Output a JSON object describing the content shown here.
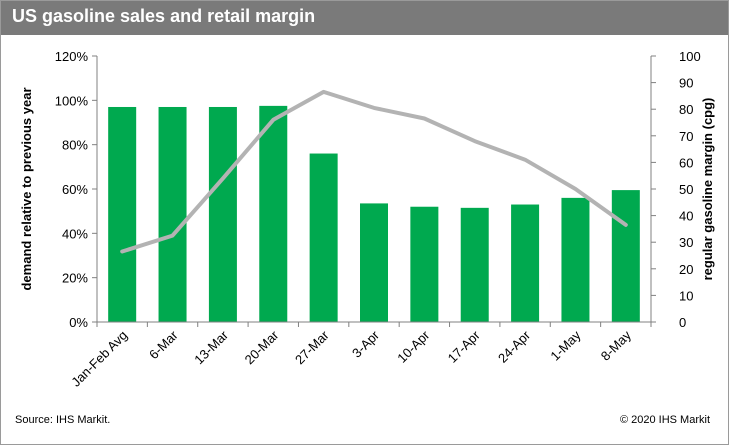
{
  "title": "US gasoline sales and retail margin",
  "source": "Source: IHS Markit.",
  "copyright": "© 2020 IHS Markit",
  "colors": {
    "bars": "#00a94f",
    "line": "#b3b3b3",
    "title_bg": "#7a7a7a"
  },
  "chart_data": {
    "type": "bar",
    "categories": [
      "Jan-Feb Avg",
      "6-Mar",
      "13-Mar",
      "20-Mar",
      "27-Mar",
      "3-Apr",
      "10-Apr",
      "17-Apr",
      "24-Apr",
      "1-May",
      "8-May"
    ],
    "series": [
      {
        "type": "bar",
        "axis": "left",
        "values": [
          97,
          97,
          97,
          97.5,
          76,
          53.5,
          52,
          51.5,
          53,
          56,
          59.5
        ]
      },
      {
        "type": "line",
        "axis": "right",
        "values": [
          26.5,
          32.5,
          54,
          76,
          86.5,
          80.5,
          76.5,
          68,
          61,
          50,
          36.5
        ]
      }
    ],
    "ylabel": "demand relative to previous year",
    "y2label": "regular gasoline margin (cpg)",
    "ylim": [
      0,
      120
    ],
    "y2lim": [
      0,
      100
    ],
    "yticks": [
      "0%",
      "20%",
      "40%",
      "60%",
      "80%",
      "100%",
      "120%"
    ],
    "y2ticks": [
      "0",
      "10",
      "20",
      "30",
      "40",
      "50",
      "60",
      "70",
      "80",
      "90",
      "100"
    ],
    "grid": false,
    "legend": "none"
  }
}
